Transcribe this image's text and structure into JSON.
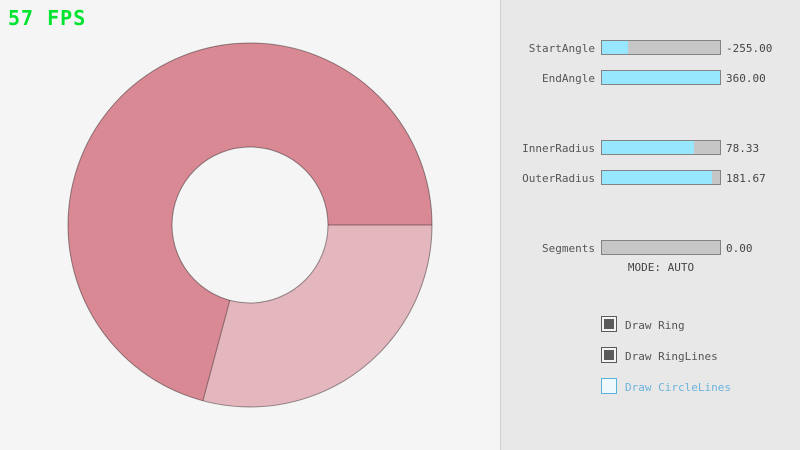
{
  "fps": "57 FPS",
  "colors": {
    "fps_green": "#00e430",
    "canvas_bg": "#f5f5f5",
    "panel_bg": "#e8e8e8",
    "slider_fill": "#97e8ff",
    "slider_track": "#c6c6c6",
    "slider_border": "#838383",
    "text_gray": "#555555",
    "check_dark": "#5a5a5a",
    "focus_border": "#5bb2d9",
    "focus_blue": "#6cb4dd"
  },
  "ring": {
    "color_overlap": "#d98994",
    "color_single": "#e4b6bd",
    "line_color": "rgba(0,0,0,0.4)"
  },
  "controls": {
    "sliders": [
      {
        "label": "StartAngle",
        "value": "-255.00",
        "fill_percent": 22
      },
      {
        "label": "EndAngle",
        "value": "360.00",
        "fill_percent": 100
      },
      {
        "label": "InnerRadius",
        "value": "78.33",
        "fill_percent": 78
      },
      {
        "label": "OuterRadius",
        "value": "181.67",
        "fill_percent": 93
      },
      {
        "label": "Segments",
        "value": "0.00",
        "fill_percent": 0
      }
    ],
    "mode_label": "MODE: AUTO",
    "checkboxes": [
      {
        "label": "Draw Ring",
        "checked": true
      },
      {
        "label": "Draw RingLines",
        "checked": true
      },
      {
        "label": "Draw CircleLines",
        "checked": false
      }
    ]
  }
}
